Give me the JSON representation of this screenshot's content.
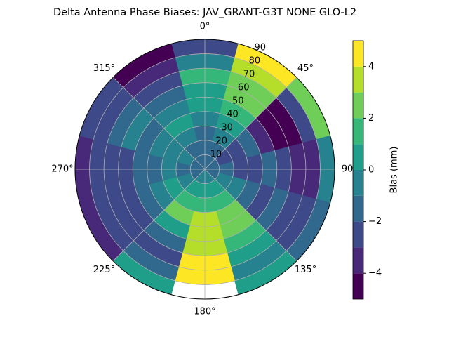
{
  "chart_data": {
    "type": "polar-contour",
    "title": "Delta Antenna Phase Biases: JAV_GRANT-G3T   NONE GLO-L2",
    "colorbar_label": "Bias (mm)",
    "azimuth": [
      0,
      30,
      60,
      90,
      120,
      150,
      180,
      210,
      240,
      270,
      300,
      330
    ],
    "zenith": [
      5,
      15,
      25,
      35,
      45,
      55,
      65,
      75,
      85
    ],
    "z": [
      [
        -1.5,
        -1.5,
        -1.5,
        -0.5,
        0.5,
        0.5,
        1.5,
        -0.5,
        -2.5
      ],
      [
        -1.5,
        -1.5,
        -0.5,
        0.5,
        1.5,
        2.5,
        2.5,
        3.5,
        4.5
      ],
      [
        -1.5,
        -2.5,
        -2.5,
        -1.5,
        -3.5,
        -4.5,
        -4.5,
        -2.5,
        2.5
      ],
      [
        -1.5,
        -1.5,
        -2.5,
        -2.5,
        -1.5,
        -2.5,
        -3.5,
        -3.5,
        -0.5
      ],
      [
        -1.5,
        -0.5,
        -0.5,
        -1.5,
        -2.5,
        -1.5,
        -2.5,
        -2.5,
        -1.5
      ],
      [
        -0.5,
        0.5,
        1.5,
        2.5,
        2.5,
        1.5,
        0.5,
        -0.5,
        0.5
      ],
      [
        -0.5,
        0.5,
        1.5,
        3.5,
        3.5,
        3.5,
        4.5,
        4.5,
        null
      ],
      [
        -0.5,
        0.5,
        1.5,
        2.5,
        0.5,
        -1.5,
        -2.5,
        -1.5,
        0.5
      ],
      [
        -1.5,
        -0.5,
        0.5,
        -0.5,
        -1.5,
        -2.5,
        -2.5,
        -2.5,
        -3.5
      ],
      [
        -1.5,
        -1.5,
        -0.5,
        -1.5,
        -1.5,
        -2.5,
        -2.5,
        -2.5,
        -3.5
      ],
      [
        -1.5,
        -0.5,
        -0.5,
        -0.5,
        -1.5,
        -0.5,
        -1.5,
        -2.5,
        -2.5
      ],
      [
        -1.5,
        -1.5,
        -0.5,
        0.5,
        -0.5,
        -1.5,
        -2.5,
        -3.5,
        -4.5
      ]
    ],
    "levels": [
      -5,
      -4,
      -3,
      -2,
      -1,
      0,
      1,
      2,
      3,
      4,
      5
    ],
    "colors": [
      "#440154",
      "#482878",
      "#3e4989",
      "#31688e",
      "#26828e",
      "#1f9e89",
      "#35b779",
      "#6ece58",
      "#b5de2b",
      "#fde725"
    ],
    "rlim": [
      0,
      90
    ],
    "rticks": [
      10,
      20,
      30,
      40,
      50,
      60,
      70,
      80,
      90
    ],
    "thetaticks": [
      {
        "value": 0,
        "label": "0°"
      },
      {
        "value": 45,
        "label": "45°"
      },
      90,
      {
        "value": 135,
        "label": "135°"
      },
      {
        "value": 180,
        "label": "180°"
      },
      {
        "value": 225,
        "label": "225°"
      },
      {
        "value": 270,
        "label": "270°"
      },
      {
        "value": 315,
        "label": "315°"
      }
    ],
    "clim": [
      -5,
      5
    ],
    "cticks": [
      {
        "value": -4,
        "label": "−4"
      },
      {
        "value": -2,
        "label": "−2"
      },
      0,
      2,
      4
    ],
    "grid": true
  }
}
